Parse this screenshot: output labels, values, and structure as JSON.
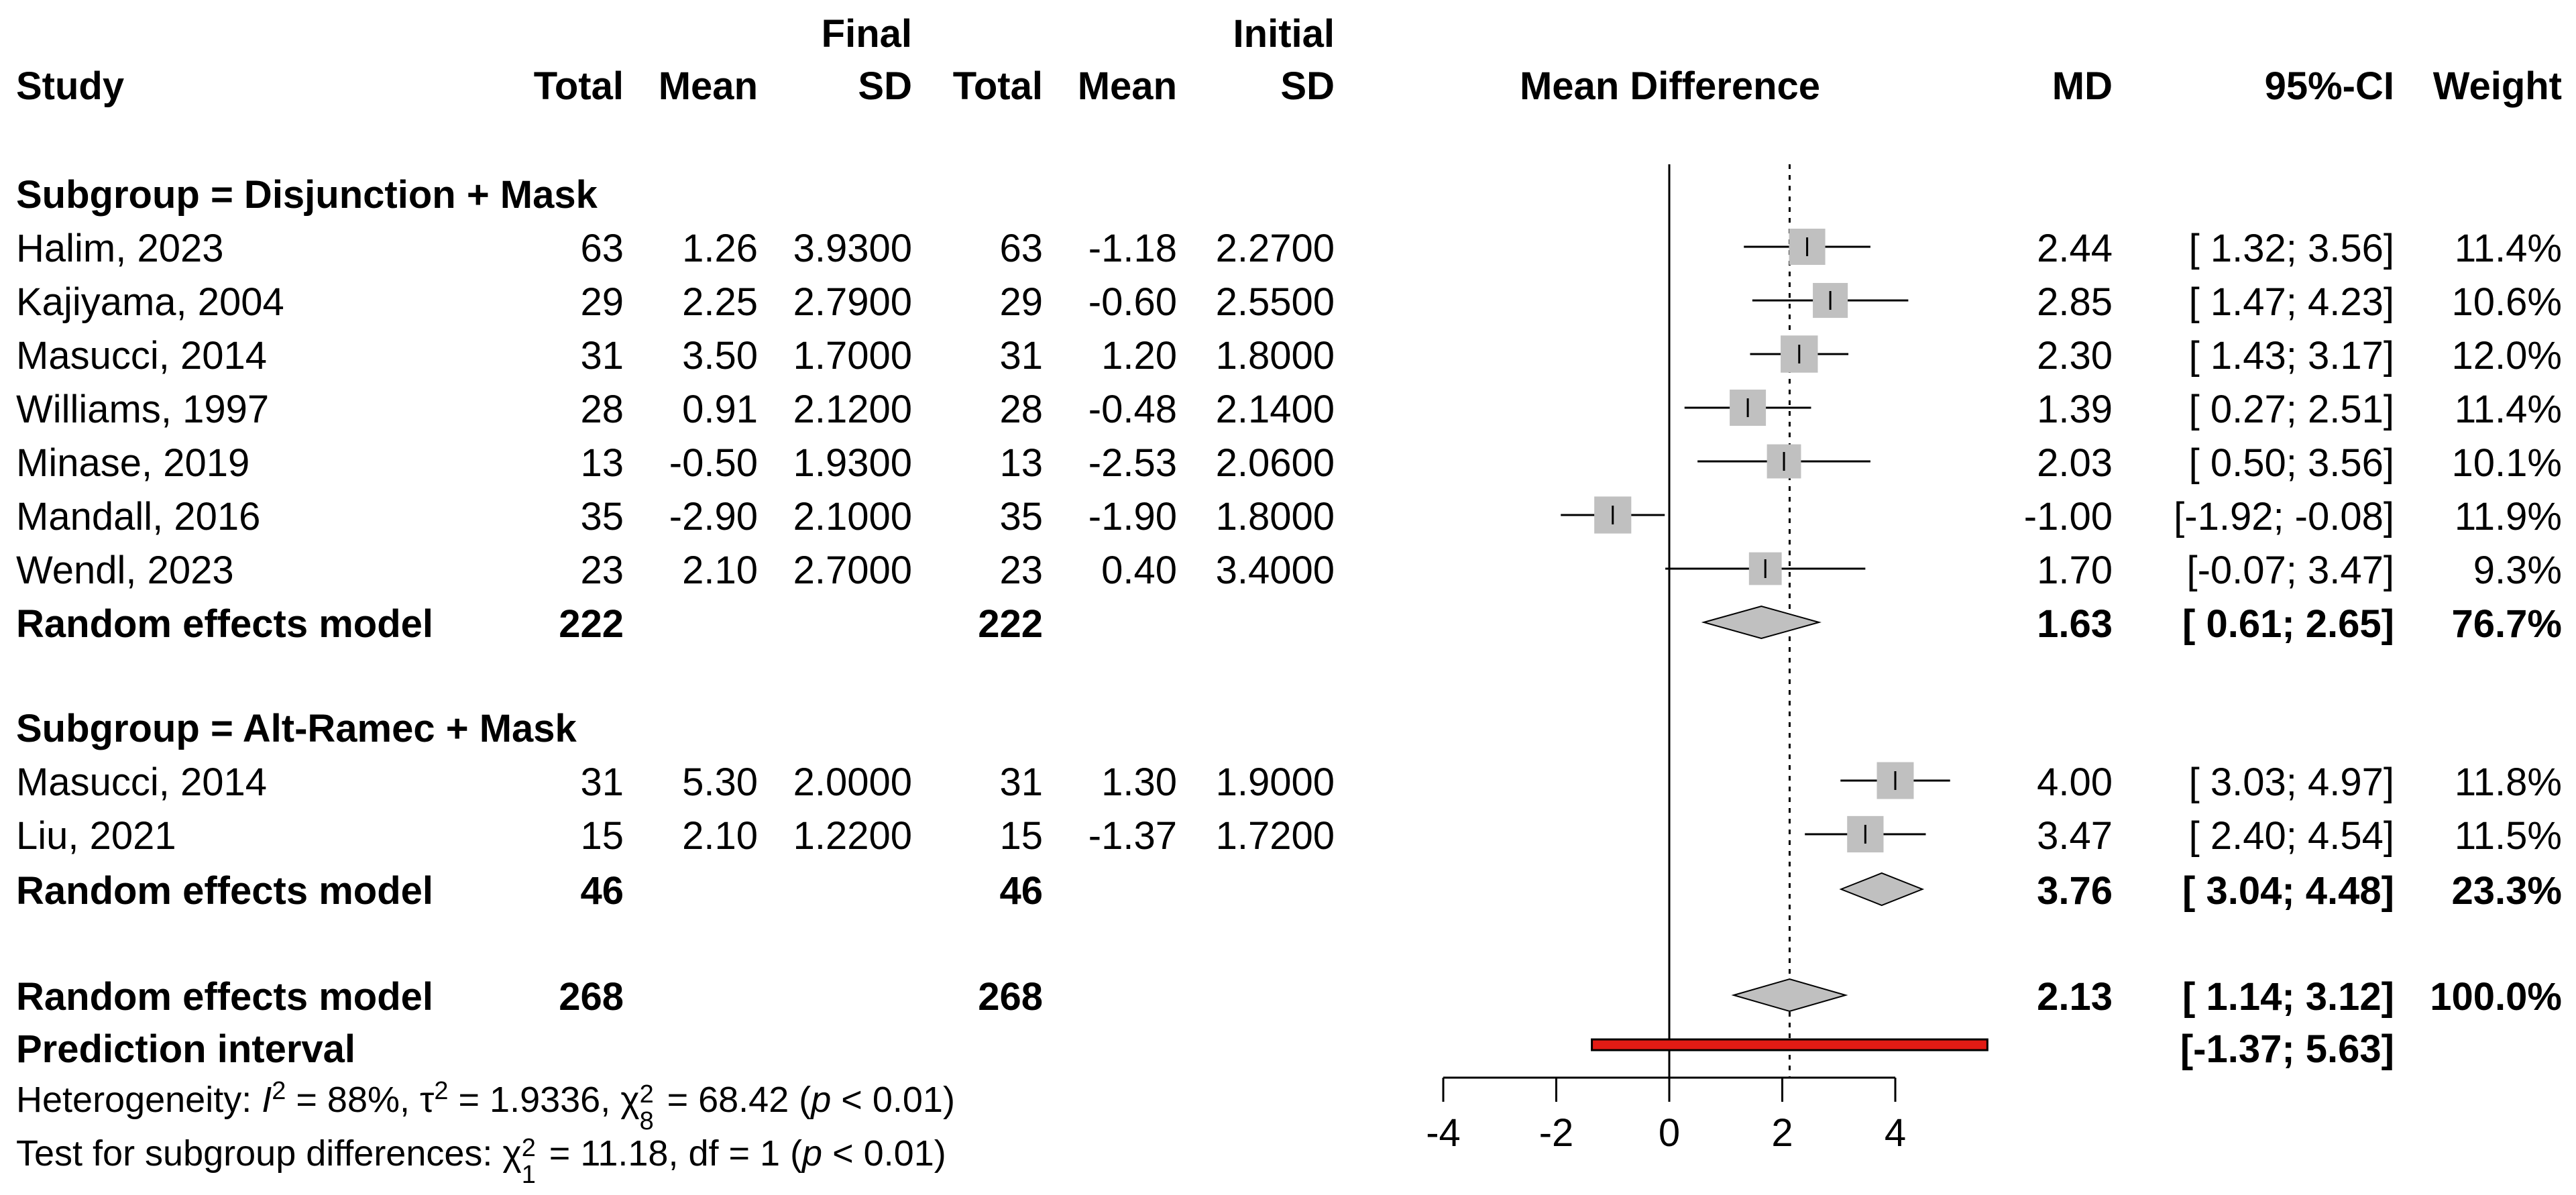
{
  "headers": {
    "study": "Study",
    "exp_total": "Total",
    "exp_mean": "Mean",
    "exp_sd_top": "Final",
    "exp_sd": "SD",
    "ctl_total": "Total",
    "ctl_mean": "Mean",
    "ctl_sd_top": "Initial",
    "ctl_sd": "SD",
    "plot": "Mean Difference",
    "md": "MD",
    "ci": "95%-CI",
    "weight": "Weight"
  },
  "subgroups": [
    {
      "label": "Subgroup = Disjunction + Mask",
      "studies": [
        {
          "name": "Halim, 2023",
          "total_e": "63",
          "mean_e": "1.26",
          "sd_e": "3.9300",
          "total_c": "63",
          "mean_c": "-1.18",
          "sd_c": "2.2700",
          "md": "2.44",
          "ci": "[ 1.32;  3.56]",
          "weight": "11.4%"
        },
        {
          "name": "Kajiyama, 2004",
          "total_e": "29",
          "mean_e": "2.25",
          "sd_e": "2.7900",
          "total_c": "29",
          "mean_c": "-0.60",
          "sd_c": "2.5500",
          "md": "2.85",
          "ci": "[ 1.47;  4.23]",
          "weight": "10.6%"
        },
        {
          "name": "Masucci, 2014",
          "total_e": "31",
          "mean_e": "3.50",
          "sd_e": "1.7000",
          "total_c": "31",
          "mean_c": "1.20",
          "sd_c": "1.8000",
          "md": "2.30",
          "ci": "[ 1.43;  3.17]",
          "weight": "12.0%"
        },
        {
          "name": "Williams, 1997",
          "total_e": "28",
          "mean_e": "0.91",
          "sd_e": "2.1200",
          "total_c": "28",
          "mean_c": "-0.48",
          "sd_c": "2.1400",
          "md": "1.39",
          "ci": "[ 0.27;  2.51]",
          "weight": "11.4%"
        },
        {
          "name": "Minase, 2019",
          "total_e": "13",
          "mean_e": "-0.50",
          "sd_e": "1.9300",
          "total_c": "13",
          "mean_c": "-2.53",
          "sd_c": "2.0600",
          "md": "2.03",
          "ci": "[ 0.50;  3.56]",
          "weight": "10.1%"
        },
        {
          "name": "Mandall, 2016",
          "total_e": "35",
          "mean_e": "-2.90",
          "sd_e": "2.1000",
          "total_c": "35",
          "mean_c": "-1.90",
          "sd_c": "1.8000",
          "md": "-1.00",
          "ci": "[-1.92; -0.08]",
          "weight": "11.9%"
        },
        {
          "name": "Wendl, 2023",
          "total_e": "23",
          "mean_e": "2.10",
          "sd_e": "2.7000",
          "total_c": "23",
          "mean_c": "0.40",
          "sd_c": "3.4000",
          "md": "1.70",
          "ci": "[-0.07;  3.47]",
          "weight": "9.3%"
        }
      ],
      "summary": {
        "label": "Random effects model",
        "total_e": "222",
        "total_c": "222",
        "md": "1.63",
        "ci": "[ 0.61;  2.65]",
        "weight": "76.7%"
      }
    },
    {
      "label": "Subgroup = Alt-Ramec + Mask",
      "studies": [
        {
          "name": "Masucci, 2014",
          "total_e": "31",
          "mean_e": "5.30",
          "sd_e": "2.0000",
          "total_c": "31",
          "mean_c": "1.30",
          "sd_c": "1.9000",
          "md": "4.00",
          "ci": "[ 3.03;  4.97]",
          "weight": "11.8%"
        },
        {
          "name": "Liu, 2021",
          "total_e": "15",
          "mean_e": "2.10",
          "sd_e": "1.2200",
          "total_c": "15",
          "mean_c": "-1.37",
          "sd_c": "1.7200",
          "md": "3.47",
          "ci": "[ 2.40;  4.54]",
          "weight": "11.5%"
        }
      ],
      "summary": {
        "label": "Random effects model",
        "total_e": "46",
        "total_c": "46",
        "md": "3.76",
        "ci": "[ 3.04;  4.48]",
        "weight": "23.3%"
      }
    }
  ],
  "overall": {
    "label": "Random effects model",
    "total_e": "268",
    "total_c": "268",
    "md": "2.13",
    "ci": "[ 1.14;  3.12]",
    "weight": "100.0%"
  },
  "prediction": {
    "label": "Prediction interval",
    "ci": "[-1.37;  5.63]"
  },
  "footer": {
    "het_prefix": "Heterogeneity: ",
    "het_i": "I",
    "het_i_exp": "2",
    "het_i_val": " = 88%, ",
    "het_tau": "τ",
    "het_tau_exp": "2",
    "het_tau_val": " = 1.9336, ",
    "het_chi": "χ",
    "het_chi_exp": "2",
    "het_chi_sub": "8",
    "het_chi_val": " = 68.42 (",
    "het_p": "p",
    "het_p_val": " < 0.01)",
    "sub_prefix": "Test for subgroup differences: ",
    "sub_chi": "χ",
    "sub_chi_exp": "2",
    "sub_chi_sub": "1",
    "sub_chi_val": " = 11.18, df = 1 (",
    "sub_p": "p",
    "sub_p_val": " < 0.01)"
  },
  "colors": {
    "square": "#c0c0c0",
    "diamond": "#c0c0c0",
    "prediction": "#e21b14",
    "line": "#000000"
  },
  "chart_data": {
    "type": "forest",
    "title": "",
    "xlabel": "Mean Difference",
    "xlim": [
      -4,
      4
    ],
    "ticks": [
      -4,
      -2,
      0,
      2,
      4
    ],
    "reference_line": 0,
    "overall_line": 2.13,
    "studies": [
      {
        "name": "Halim, 2023",
        "subgroup": "Disjunction + Mask",
        "md": 2.44,
        "lower": 1.32,
        "upper": 3.56,
        "weight": 11.4
      },
      {
        "name": "Kajiyama, 2004",
        "subgroup": "Disjunction + Mask",
        "md": 2.85,
        "lower": 1.47,
        "upper": 4.23,
        "weight": 10.6
      },
      {
        "name": "Masucci, 2014",
        "subgroup": "Disjunction + Mask",
        "md": 2.3,
        "lower": 1.43,
        "upper": 3.17,
        "weight": 12.0
      },
      {
        "name": "Williams, 1997",
        "subgroup": "Disjunction + Mask",
        "md": 1.39,
        "lower": 0.27,
        "upper": 2.51,
        "weight": 11.4
      },
      {
        "name": "Minase, 2019",
        "subgroup": "Disjunction + Mask",
        "md": 2.03,
        "lower": 0.5,
        "upper": 3.56,
        "weight": 10.1
      },
      {
        "name": "Mandall, 2016",
        "subgroup": "Disjunction + Mask",
        "md": -1.0,
        "lower": -1.92,
        "upper": -0.08,
        "weight": 11.9
      },
      {
        "name": "Wendl, 2023",
        "subgroup": "Disjunction + Mask",
        "md": 1.7,
        "lower": -0.07,
        "upper": 3.47,
        "weight": 9.3
      },
      {
        "name": "Masucci, 2014",
        "subgroup": "Alt-Ramec + Mask",
        "md": 4.0,
        "lower": 3.03,
        "upper": 4.97,
        "weight": 11.8
      },
      {
        "name": "Liu, 2021",
        "subgroup": "Alt-Ramec + Mask",
        "md": 3.47,
        "lower": 2.4,
        "upper": 4.54,
        "weight": 11.5
      }
    ],
    "summaries": [
      {
        "name": "Disjunction + Mask",
        "md": 1.63,
        "lower": 0.61,
        "upper": 2.65
      },
      {
        "name": "Alt-Ramec + Mask",
        "md": 3.76,
        "lower": 3.04,
        "upper": 4.48
      },
      {
        "name": "Overall",
        "md": 2.13,
        "lower": 1.14,
        "upper": 3.12
      }
    ],
    "prediction_interval": {
      "lower": -1.37,
      "upper": 5.63
    }
  }
}
